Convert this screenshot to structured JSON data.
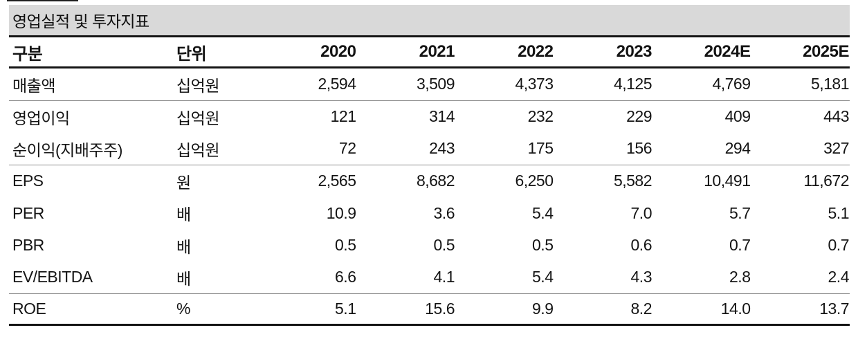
{
  "colors": {
    "title_bar_bg": "#d9d9d9",
    "rule_strong": "#141414",
    "rule_light": "#8a8a8a"
  },
  "table": {
    "title": "영업실적 및 투자지표",
    "headers": {
      "category": "구분",
      "unit": "단위",
      "years": [
        "2020",
        "2021",
        "2022",
        "2023",
        "2024E",
        "2025E"
      ]
    },
    "rows": [
      {
        "label": "매출액",
        "unit": "십억원",
        "values": [
          "2,594",
          "3,509",
          "4,373",
          "4,125",
          "4,769",
          "5,181"
        ]
      },
      {
        "label": "영업이익",
        "unit": "십억원",
        "values": [
          "121",
          "314",
          "232",
          "229",
          "409",
          "443"
        ]
      },
      {
        "label": "순이익(지배주주)",
        "unit": "십억원",
        "values": [
          "72",
          "243",
          "175",
          "156",
          "294",
          "327"
        ]
      },
      {
        "label": "EPS",
        "unit": "원",
        "values": [
          "2,565",
          "8,682",
          "6,250",
          "5,582",
          "10,491",
          "11,672"
        ]
      },
      {
        "label": "PER",
        "unit": "배",
        "values": [
          "10.9",
          "3.6",
          "5.4",
          "7.0",
          "5.7",
          "5.1"
        ]
      },
      {
        "label": "PBR",
        "unit": "배",
        "values": [
          "0.5",
          "0.5",
          "0.5",
          "0.6",
          "0.7",
          "0.7"
        ]
      },
      {
        "label": "EV/EBITDA",
        "unit": "배",
        "values": [
          "6.6",
          "4.1",
          "5.4",
          "4.3",
          "2.8",
          "2.4"
        ]
      },
      {
        "label": "ROE",
        "unit": "%",
        "values": [
          "5.1",
          "15.6",
          "9.9",
          "8.2",
          "14.0",
          "13.7"
        ]
      }
    ]
  }
}
